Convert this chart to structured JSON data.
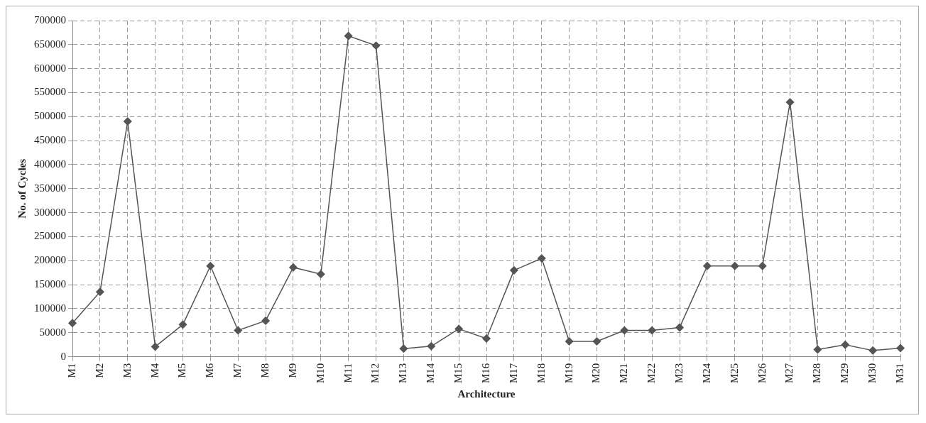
{
  "chart_data": {
    "type": "line",
    "xlabel": "Architecture",
    "ylabel": "No. of Cycles",
    "categories": [
      "M1",
      "M2",
      "M3",
      "M4",
      "M5",
      "M6",
      "M7",
      "M8",
      "M9",
      "M10",
      "M11",
      "M12",
      "M13",
      "M14",
      "M15",
      "M16",
      "M17",
      "M18",
      "M19",
      "M20",
      "M21",
      "M22",
      "M23",
      "M24",
      "M25",
      "M26",
      "M27",
      "M28",
      "M29",
      "M30",
      "M31"
    ],
    "series": [
      {
        "color": "#555555",
        "values": [
          70000,
          135000,
          490000,
          21000,
          67000,
          189000,
          55000,
          75000,
          186000,
          172000,
          668000,
          648000,
          17000,
          22000,
          58000,
          38000,
          180000,
          205000,
          32000,
          32000,
          55000,
          55000,
          61000,
          189000,
          189000,
          189000,
          530000,
          15000,
          25000,
          13000,
          18000
        ]
      }
    ],
    "ylim": [
      0,
      700000
    ],
    "yticks": [
      0,
      50000,
      100000,
      150000,
      200000,
      250000,
      300000,
      350000,
      400000,
      450000,
      500000,
      550000,
      600000,
      650000,
      700000
    ],
    "grid": true,
    "marker": "diamond",
    "line_style": "solid",
    "legend": false
  }
}
